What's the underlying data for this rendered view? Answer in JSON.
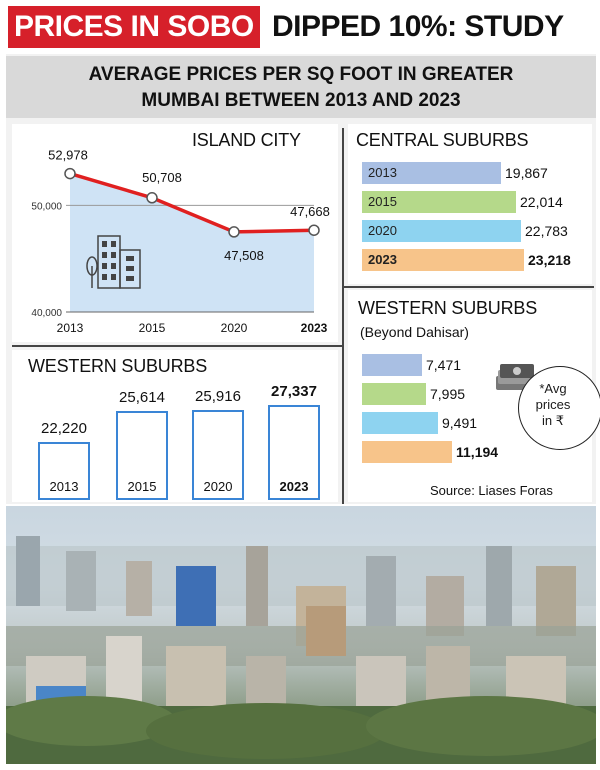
{
  "headline": {
    "red_part": "PRICES IN SOBO",
    "rest": "DIPPED 10%: STUDY"
  },
  "subheadline": [
    "AVERAGE PRICES PER SQ FOOT IN GREATER",
    "MUMBAI BETWEEN 2013 AND 2023"
  ],
  "chart_data": [
    {
      "type": "line",
      "title": "ISLAND CITY",
      "x": [
        "2013",
        "2015",
        "2020",
        "2023"
      ],
      "values": [
        52978,
        50708,
        47508,
        47668
      ],
      "labels": [
        "52,978",
        "50,708",
        "47,508",
        "47,668"
      ],
      "ytick_labels": [
        "50,000",
        "40,000"
      ],
      "yticks": [
        50000,
        40000
      ],
      "ylim": [
        40000,
        55000
      ],
      "line_color": "#e02020",
      "fill_color": "#cfe3f5",
      "bold_last": true
    },
    {
      "type": "bar",
      "title": "CENTRAL SUBURBS",
      "categories": [
        "2013",
        "2015",
        "2020",
        "2023"
      ],
      "values": [
        19867,
        22014,
        22783,
        23218
      ],
      "labels": [
        "19,867",
        "22,014",
        "22,783",
        "23,218"
      ],
      "colors": [
        "#a9bfe3",
        "#b5d98a",
        "#8ed3f0",
        "#f7c48a"
      ],
      "orientation": "horizontal",
      "bold_last": true
    },
    {
      "type": "bar",
      "title": "WESTERN SUBURBS",
      "categories": [
        "2013",
        "2015",
        "2020",
        "2023"
      ],
      "values": [
        22220,
        25614,
        25916,
        27337
      ],
      "labels": [
        "22,220",
        "25,614",
        "25,916",
        "27,337"
      ],
      "orientation": "vertical",
      "box_color": "#3a85d6",
      "bold_last": true
    },
    {
      "type": "bar",
      "title": "WESTERN SUBURBS",
      "subtitle": "(Beyond Dahisar)",
      "values": [
        7471,
        7995,
        9491,
        11194
      ],
      "labels": [
        "7,471",
        "7,995",
        "9,491",
        "11,194"
      ],
      "colors": [
        "#a9bfe3",
        "#b5d98a",
        "#8ed3f0",
        "#f7c48a"
      ],
      "orientation": "horizontal",
      "bold_last": true
    }
  ],
  "note": [
    "*Avg",
    "prices",
    "in ₹"
  ],
  "source": "Source: Liases Foras"
}
